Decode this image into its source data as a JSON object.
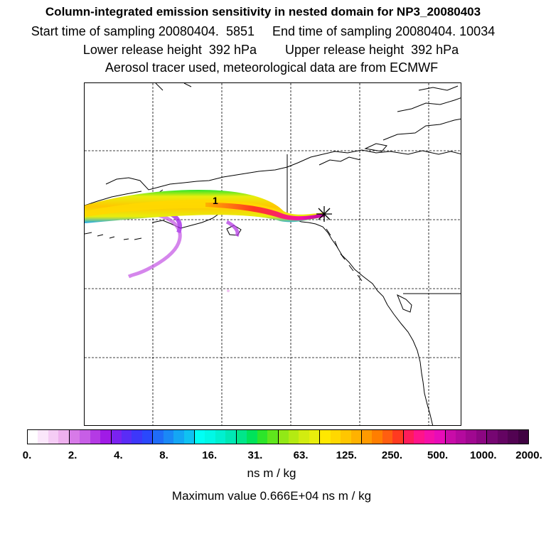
{
  "header": {
    "title": "Column-integrated emission sensitivity in nested domain for NP3_20080403",
    "line2": "Start time of sampling 20080404.  5851     End time of sampling 20080404. 10034",
    "line3": "Lower release height  392 hPa        Upper release height  392 hPa",
    "line4": "Aerosol tracer used, meteorological data are from ECMWF"
  },
  "map": {
    "marker_label": "1",
    "release_marker": "star-marker",
    "gridlines": "dashed"
  },
  "colorbar": {
    "ticks": [
      "0.",
      "2.",
      "4.",
      "8.",
      "16.",
      "31.",
      "63.",
      "125.",
      "250.",
      "500.",
      "1000.",
      "2000."
    ],
    "segments": [
      [
        "#ffffff",
        "#fbe7fb",
        "#f5ccf5",
        "#eeb0ee"
      ],
      [
        "#d77ae8",
        "#c75ee6",
        "#b43ae4",
        "#a01be6"
      ],
      [
        "#7a22f0",
        "#5a2cf6",
        "#3d37fa",
        "#2a48fc"
      ],
      [
        "#1f6cf8",
        "#1a88f6",
        "#14a6f4",
        "#0fc2f2"
      ],
      [
        "#00fff5",
        "#00f8e6",
        "#00f0d0",
        "#00e8b5"
      ],
      [
        "#00e68a",
        "#00e35a",
        "#2ce52a",
        "#5fe61c"
      ],
      [
        "#92e816",
        "#b4ea12",
        "#d2ec10",
        "#e8ee0c"
      ],
      [
        "#ffe800",
        "#ffd800",
        "#ffc600",
        "#ffb200"
      ],
      [
        "#ff9a00",
        "#ff7e00",
        "#ff5e10",
        "#ff3a20"
      ],
      [
        "#ff1c5a",
        "#ff148a",
        "#f510a8",
        "#e80cb8"
      ],
      [
        "#c80ca8",
        "#b40a9e",
        "#a00890",
        "#8c0682"
      ],
      [
        "#760672",
        "#640462",
        "#520352",
        "#400242"
      ]
    ],
    "unit_label": "ns m / kg",
    "max_value_text": "Maximum value  0.666E+04 ns m / kg"
  }
}
